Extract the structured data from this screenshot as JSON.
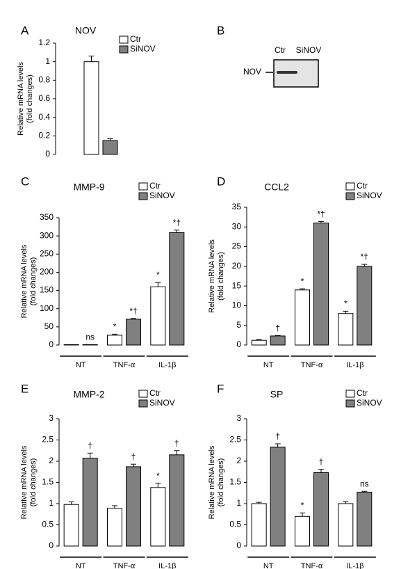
{
  "chart_data": [
    {
      "type": "bar",
      "panel": "A",
      "title": "NOV",
      "y_label": [
        "Relative mRNA levels",
        "(fold changes)"
      ],
      "categories": [
        null
      ],
      "series": [
        {
          "name": "Ctr",
          "color": "#ffffff",
          "values": [
            1.0
          ],
          "errors": [
            0.06
          ]
        },
        {
          "name": "SiNOV",
          "color": "#808080",
          "values": [
            0.15
          ],
          "errors": [
            0.02
          ]
        }
      ],
      "ylim": [
        0,
        1.2
      ],
      "yticks": [
        0,
        0.2,
        0.4,
        0.6,
        0.8,
        1,
        1.2
      ]
    },
    {
      "type": "bar",
      "panel": "C",
      "title": "MMP-9",
      "y_label": [
        "Relative mRNA levels",
        "(fold changes)"
      ],
      "categories": [
        "NT",
        "TNF-α",
        "IL-1β"
      ],
      "series": [
        {
          "name": "Ctr",
          "color": "#ffffff",
          "values": [
            1,
            27,
            160
          ],
          "errors": [
            0,
            3,
            12
          ],
          "annotations": [
            null,
            "*",
            "*"
          ]
        },
        {
          "name": "SiNOV",
          "color": "#808080",
          "values": [
            1,
            71,
            309
          ],
          "errors": [
            0,
            2,
            7
          ],
          "annotations": [
            "ns",
            "*†",
            "*†"
          ]
        }
      ],
      "ylim": [
        0,
        350
      ],
      "yticks": [
        0,
        50,
        100,
        150,
        200,
        250,
        300,
        350
      ]
    },
    {
      "type": "bar",
      "panel": "D",
      "title": "CCL2",
      "y_label": [
        "Relative mRNA levels",
        "(fold changes)"
      ],
      "categories": [
        "NT",
        "TNF-α",
        "IL-1β"
      ],
      "series": [
        {
          "name": "Ctr",
          "color": "#ffffff",
          "values": [
            1.2,
            14,
            8
          ],
          "errors": [
            0.2,
            0.3,
            0.6
          ],
          "annotations": [
            null,
            "*",
            "*"
          ]
        },
        {
          "name": "SiNOV",
          "color": "#808080",
          "values": [
            2.3,
            31,
            20
          ],
          "errors": [
            0.1,
            0.4,
            0.5
          ],
          "annotations": [
            "†",
            "*†",
            "*†"
          ]
        }
      ],
      "ylim": [
        0,
        35
      ],
      "yticks": [
        0,
        5,
        10,
        15,
        20,
        25,
        30,
        35
      ]
    },
    {
      "type": "bar",
      "panel": "E",
      "title": "MMP-2",
      "y_label": [
        "Relative mRNA levels",
        "(fold changes)"
      ],
      "categories": [
        "NT",
        "TNF-α",
        "IL-1β"
      ],
      "series": [
        {
          "name": "Ctr",
          "color": "#ffffff",
          "values": [
            0.98,
            0.89,
            1.38
          ],
          "errors": [
            0.06,
            0.06,
            0.1
          ],
          "annotations": [
            null,
            null,
            "*"
          ]
        },
        {
          "name": "SiNOV",
          "color": "#808080",
          "values": [
            2.07,
            1.87,
            2.15
          ],
          "errors": [
            0.12,
            0.06,
            0.1
          ],
          "annotations": [
            "†",
            "†",
            "†"
          ]
        }
      ],
      "ylim": [
        0,
        3
      ],
      "yticks": [
        0,
        0.5,
        1,
        1.5,
        2,
        2.5,
        3
      ]
    },
    {
      "type": "bar",
      "panel": "F",
      "title": "SP",
      "y_label": [
        "Relative mRNA levels",
        "(fold changes)"
      ],
      "categories": [
        "NT",
        "TNF-α",
        "IL-1β"
      ],
      "series": [
        {
          "name": "Ctr",
          "color": "#ffffff",
          "values": [
            1.0,
            0.7,
            1.0
          ],
          "errors": [
            0.03,
            0.08,
            0.05
          ],
          "annotations": [
            null,
            "*",
            null
          ]
        },
        {
          "name": "SiNOV",
          "color": "#808080",
          "values": [
            2.33,
            1.73,
            1.27
          ],
          "errors": [
            0.08,
            0.08,
            0.02
          ],
          "annotations": [
            "†",
            "†",
            "ns"
          ]
        }
      ],
      "ylim": [
        0,
        3
      ],
      "yticks": [
        0,
        0.5,
        1,
        1.5,
        2,
        2.5,
        3
      ]
    }
  ],
  "blot": {
    "panel": "B",
    "lanes": [
      "Ctr",
      "SiNOV"
    ],
    "band": "NOV"
  }
}
